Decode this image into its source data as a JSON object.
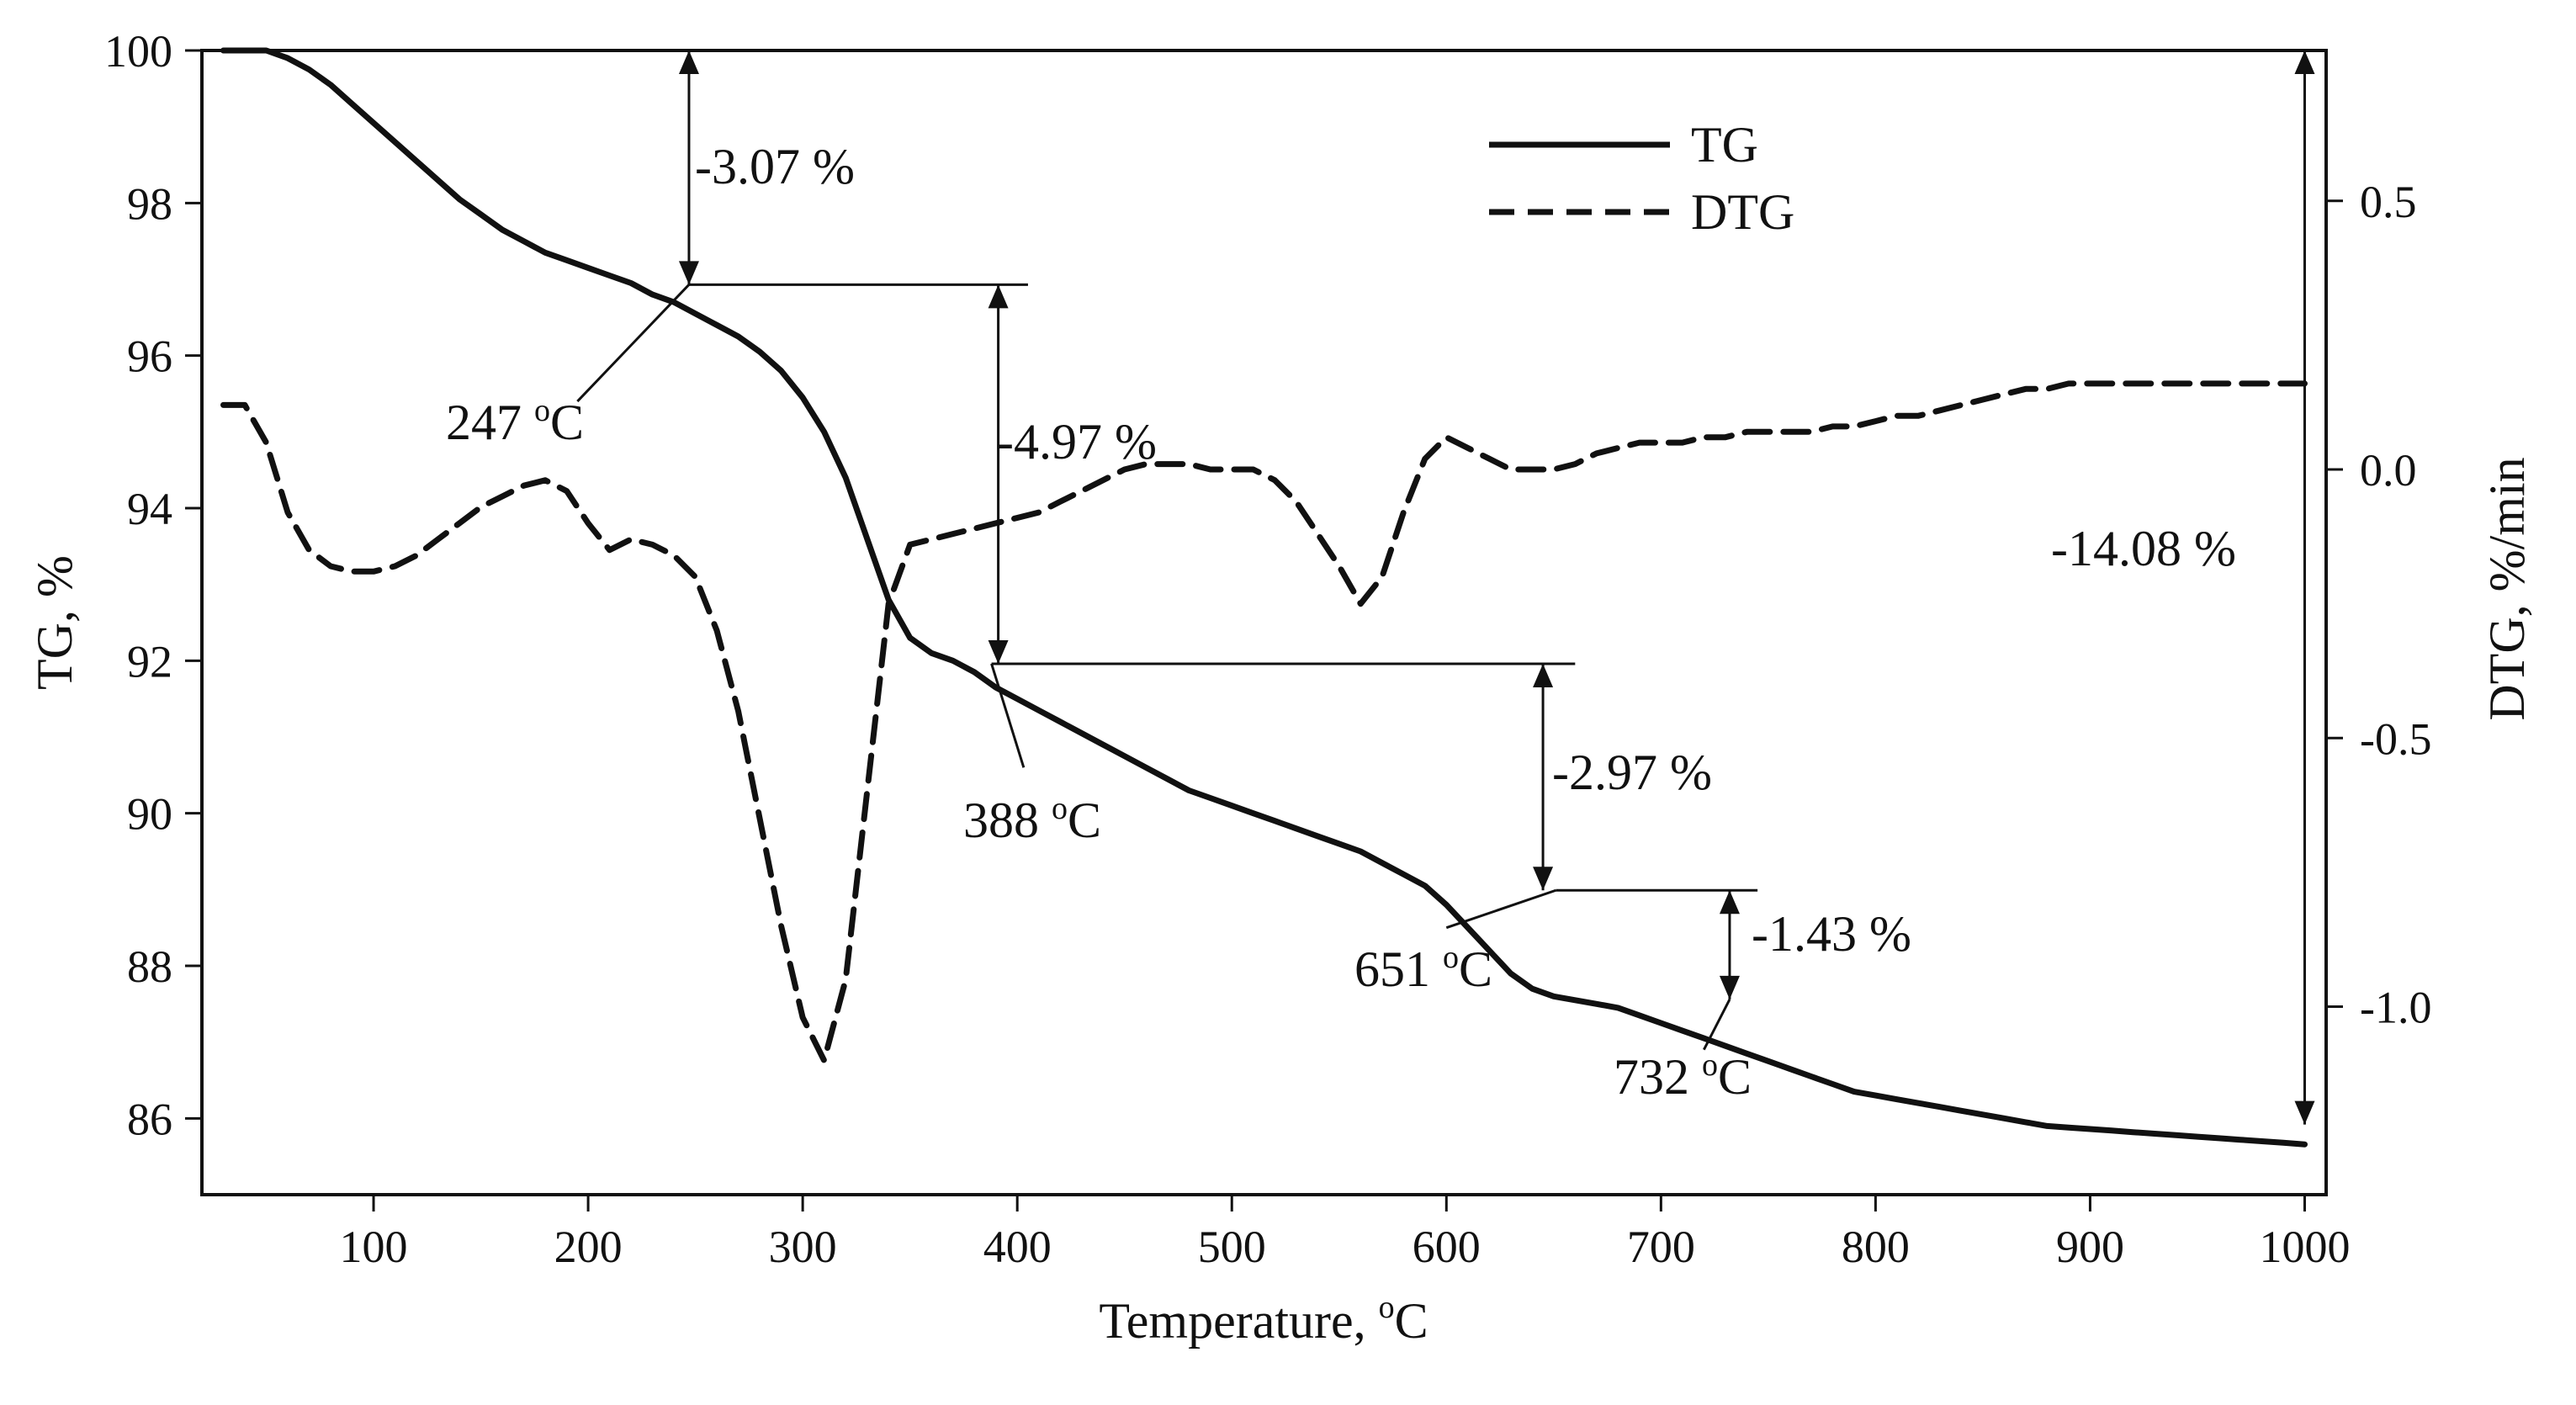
{
  "chart_data": {
    "type": "line",
    "x": [
      30,
      40,
      50,
      60,
      70,
      80,
      90,
      100,
      110,
      120,
      130,
      140,
      150,
      160,
      170,
      180,
      190,
      200,
      210,
      220,
      230,
      240,
      250,
      260,
      270,
      280,
      290,
      300,
      310,
      320,
      330,
      340,
      350,
      360,
      370,
      380,
      390,
      400,
      410,
      420,
      430,
      440,
      450,
      460,
      470,
      480,
      490,
      500,
      510,
      520,
      530,
      540,
      550,
      560,
      570,
      580,
      590,
      600,
      610,
      620,
      630,
      640,
      650,
      660,
      670,
      680,
      690,
      700,
      710,
      720,
      730,
      740,
      750,
      760,
      770,
      780,
      790,
      800,
      810,
      820,
      830,
      840,
      850,
      860,
      870,
      880,
      890,
      900,
      910,
      920,
      930,
      940,
      950,
      960,
      970,
      980,
      990,
      1000
    ],
    "series": [
      {
        "name": "TG",
        "axis": "left",
        "style": "solid",
        "values": [
          100.0,
          100.0,
          100.0,
          99.9,
          99.75,
          99.55,
          99.3,
          99.05,
          98.8,
          98.55,
          98.3,
          98.05,
          97.85,
          97.65,
          97.5,
          97.35,
          97.25,
          97.15,
          97.05,
          96.95,
          96.8,
          96.7,
          96.55,
          96.4,
          96.25,
          96.05,
          95.8,
          95.45,
          95.0,
          94.4,
          93.6,
          92.8,
          92.3,
          92.1,
          92.0,
          91.85,
          91.65,
          91.5,
          91.35,
          91.2,
          91.05,
          90.9,
          90.75,
          90.6,
          90.45,
          90.3,
          90.2,
          90.1,
          90.0,
          89.9,
          89.8,
          89.7,
          89.6,
          89.5,
          89.35,
          89.2,
          89.05,
          88.8,
          88.5,
          88.2,
          87.9,
          87.7,
          87.6,
          87.55,
          87.5,
          87.45,
          87.35,
          87.25,
          87.15,
          87.05,
          86.95,
          86.85,
          86.75,
          86.65,
          86.55,
          86.45,
          86.35,
          86.3,
          86.25,
          86.2,
          86.15,
          86.1,
          86.05,
          86.0,
          85.95,
          85.9,
          85.88,
          85.86,
          85.84,
          85.82,
          85.8,
          85.78,
          85.76,
          85.74,
          85.72,
          85.7,
          85.68,
          85.66
        ]
      },
      {
        "name": "DTG",
        "axis": "right",
        "style": "dashed",
        "values": [
          0.12,
          0.12,
          0.05,
          -0.08,
          -0.15,
          -0.18,
          -0.19,
          -0.19,
          -0.18,
          -0.16,
          -0.13,
          -0.1,
          -0.07,
          -0.05,
          -0.03,
          -0.02,
          -0.04,
          -0.1,
          -0.15,
          -0.13,
          -0.14,
          -0.16,
          -0.2,
          -0.3,
          -0.45,
          -0.65,
          -0.85,
          -1.02,
          -1.1,
          -0.95,
          -0.6,
          -0.25,
          -0.14,
          -0.13,
          -0.12,
          -0.11,
          -0.1,
          -0.09,
          -0.08,
          -0.06,
          -0.04,
          -0.02,
          0.0,
          0.01,
          0.01,
          0.01,
          0.0,
          0.0,
          0.0,
          -0.02,
          -0.06,
          -0.12,
          -0.18,
          -0.25,
          -0.2,
          -0.08,
          0.02,
          0.06,
          0.04,
          0.02,
          0.0,
          0.0,
          0.0,
          0.01,
          0.03,
          0.04,
          0.05,
          0.05,
          0.05,
          0.06,
          0.06,
          0.07,
          0.07,
          0.07,
          0.07,
          0.08,
          0.08,
          0.09,
          0.1,
          0.1,
          0.11,
          0.12,
          0.13,
          0.14,
          0.15,
          0.15,
          0.16,
          0.16,
          0.16,
          0.16,
          0.16,
          0.16,
          0.16,
          0.16,
          0.16,
          0.16,
          0.16,
          0.16
        ]
      }
    ],
    "xlabel": "Temperature, ",
    "xlabel_unit_sup": "o",
    "xlabel_unit": "C",
    "ylabel": "TG, %",
    "y2label": "DTG, %/min",
    "xlim": [
      20,
      1010
    ],
    "ylim": [
      85,
      100
    ],
    "y2lim": [
      -1.35,
      0.78
    ],
    "xticks": [
      "100",
      "200",
      "300",
      "400",
      "500",
      "600",
      "700",
      "800",
      "900",
      "1000"
    ],
    "yticks": [
      "86",
      "88",
      "90",
      "92",
      "94",
      "96",
      "98",
      "100"
    ],
    "y2ticks": [
      "-1.0",
      "-0.5",
      "0.0",
      "0.5"
    ],
    "legend": {
      "position": "top-center",
      "entries": [
        "TG",
        "DTG"
      ]
    },
    "annotations": {
      "mass_losses": [
        "-3.07 %",
        "-4.97 %",
        "-2.97 %",
        "-1.43 %",
        "-14.08 %"
      ],
      "temperatures": [
        {
          "value": "247 ",
          "sup": "o",
          "unit": "C"
        },
        {
          "value": "388 ",
          "sup": "o",
          "unit": "C"
        },
        {
          "value": "651 ",
          "sup": "o",
          "unit": "C"
        },
        {
          "value": "732 ",
          "sup": "o",
          "unit": "C"
        }
      ]
    }
  }
}
